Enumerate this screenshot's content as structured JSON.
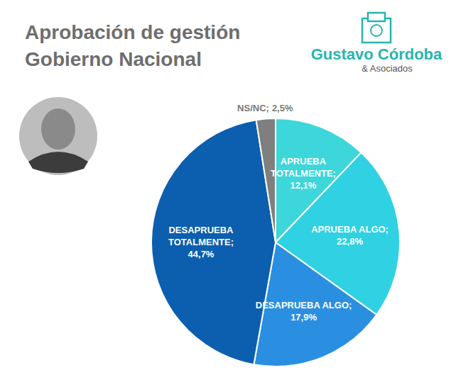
{
  "chart_data": {
    "type": "pie",
    "title": "Aprobación de gestión Gobierno Nacional",
    "annotations": [
      "Gustavo Córdoba",
      "& Asociados"
    ],
    "categories": [
      "APRUEBA TOTALMENTE;",
      "APRUEBA ALGO;",
      "DESAPRUEBA ALGO;",
      "DESAPRUEBA TOTALMENTE;",
      "NS/NC;"
    ],
    "values": [
      12.1,
      22.8,
      17.9,
      44.7,
      2.5
    ],
    "value_labels": [
      "12,1%",
      "22,8%",
      "17,9%",
      "44,7%",
      "2,5%"
    ],
    "colors": [
      "#3dd6da",
      "#2fd1e3",
      "#2a8fe0",
      "#0c5fae",
      "#7f7f7f"
    ],
    "data_labels": true
  }
}
